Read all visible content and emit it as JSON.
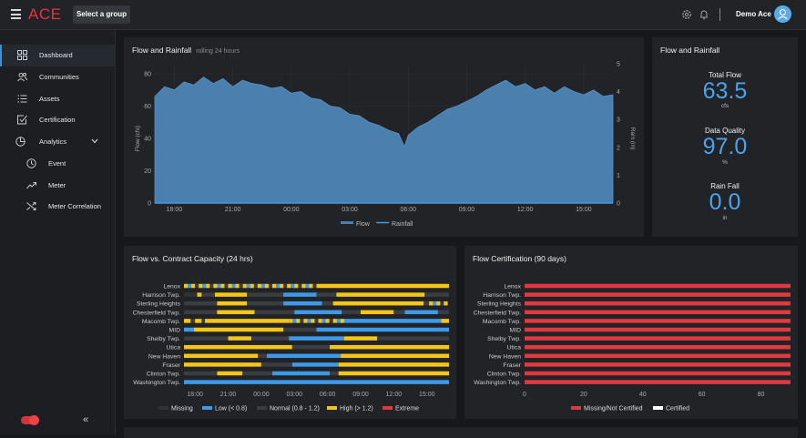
{
  "header": {
    "logo": "ACE",
    "group_button": "Select a group",
    "user_name": "Demo Ace",
    "icons": [
      "menu-icon",
      "gear-icon",
      "bell-icon",
      "user-icon"
    ]
  },
  "sidebar": {
    "items": [
      {
        "label": "Dashboard",
        "icon": "grid-icon",
        "active": true
      },
      {
        "label": "Communities",
        "icon": "users-icon"
      },
      {
        "label": "Assets",
        "icon": "list-icon"
      },
      {
        "label": "Certification",
        "icon": "checkbox-icon"
      },
      {
        "label": "Analytics",
        "icon": "pie-icon",
        "expanded": true
      },
      {
        "label": "Event",
        "icon": "clock-icon"
      },
      {
        "label": "Meter",
        "icon": "trend-icon"
      },
      {
        "label": "Meter Correlation",
        "icon": "shuffle-icon"
      }
    ],
    "collapse_label": "«"
  },
  "flow_panel": {
    "title": "Flow and Rainfall",
    "subtitle": "rolling 24 hours"
  },
  "kpi_panel": {
    "title": "Flow and Rainfall",
    "total_flow_label": "Total Flow",
    "total_flow_value": "63.5",
    "total_flow_unit": "cfs",
    "quality_label": "Data Quality",
    "quality_value": "97.0",
    "quality_unit": "%",
    "rain_label": "Rain Fall",
    "rain_value": "0.0",
    "rain_unit": "in"
  },
  "capacity_panel": {
    "title": "Flow vs. Contract Capacity (24 hrs)"
  },
  "cert_panel": {
    "title": "Flow Certification (90 days)"
  },
  "colors": {
    "accent": "#4aa3f0",
    "flow_fill": "#4a7fae",
    "missing": "#2f3236",
    "low": "#3d9ae8",
    "normal": "#3a3d41",
    "high": "#f5c518",
    "extreme": "#e03a40",
    "certified": "#ffffff"
  },
  "chart_data": [
    {
      "type": "area",
      "title": "Flow and Rainfall",
      "subtitle": "rolling 24 hours",
      "xlabel": "",
      "ylabel": "Flow (cfs)",
      "y2label": "Rain (in)",
      "ylim": [
        0,
        80
      ],
      "y2lim": [
        0,
        5
      ],
      "yticks": [
        0,
        20,
        40,
        60,
        80
      ],
      "y2ticks": [
        0,
        1,
        2,
        3,
        4,
        5
      ],
      "x_ticks": [
        "18:00",
        "21:00",
        "00:00",
        "03:00",
        "06:00",
        "09:00",
        "12:00",
        "15:00"
      ],
      "x_start_hour": 17,
      "x_end_hour": 40.5,
      "series": [
        {
          "name": "Flow",
          "hours": [
            17,
            17.5,
            18,
            18.5,
            19,
            19.5,
            20,
            20.5,
            21,
            21.5,
            22,
            22.5,
            23,
            23.5,
            24,
            24.5,
            25,
            25.5,
            26,
            26.5,
            27,
            27.5,
            28,
            28.5,
            29,
            29.5,
            29.8,
            30,
            30.5,
            31,
            31.5,
            32,
            32.5,
            33,
            33.5,
            34,
            34.5,
            35,
            35.5,
            36,
            36.5,
            37,
            37.5,
            38,
            38.5,
            39,
            39.5,
            40,
            40.5
          ],
          "values": [
            66,
            72,
            70,
            75,
            73,
            78,
            74,
            77,
            72,
            76,
            74,
            73,
            71,
            72,
            68,
            69,
            65,
            64,
            60,
            59,
            55,
            54,
            50,
            48,
            45,
            43,
            35,
            42,
            47,
            50,
            54,
            58,
            60,
            63,
            66,
            70,
            73,
            76,
            72,
            74,
            70,
            72,
            68,
            72,
            69,
            67,
            70,
            66,
            67
          ]
        },
        {
          "name": "Rainfall",
          "values": []
        }
      ]
    },
    {
      "type": "bar",
      "orientation": "horizontal",
      "title": "Flow vs. Contract Capacity (24 hrs)",
      "categories": [
        "Lenox",
        "Harrison Twp.",
        "Sterling Heights",
        "Chesterfield Twp.",
        "Macomb Twp.",
        "MID",
        "Shelby Twp.",
        "Utica",
        "New Haven",
        "Fraser",
        "Clinton Twp.",
        "Washington Twp."
      ],
      "x_ticks": [
        "18:00",
        "21:00",
        "00:00",
        "03:00",
        "06:00",
        "09:00",
        "12:00",
        "15:00"
      ],
      "legend": [
        "Missing",
        "Low (< 0.8)",
        "Normal (0.8 - 1.2)",
        "High (> 1.2)",
        "Extreme"
      ],
      "segments": [
        [
          [
            0,
            12,
            "mixed"
          ],
          [
            12,
            24,
            "high"
          ]
        ],
        [
          [
            0,
            1.2,
            "missing"
          ],
          [
            1.2,
            1.6,
            "high"
          ],
          [
            1.6,
            2.8,
            "normal"
          ],
          [
            2.8,
            5.7,
            "high"
          ],
          [
            5.7,
            9,
            "normal"
          ],
          [
            9,
            12,
            "low"
          ],
          [
            12,
            13.8,
            "normal"
          ],
          [
            13.8,
            21.8,
            "high"
          ],
          [
            21.8,
            24,
            "normal"
          ]
        ],
        [
          [
            0,
            3,
            "normal"
          ],
          [
            3,
            5.7,
            "high"
          ],
          [
            5.7,
            9,
            "normal"
          ],
          [
            9,
            12.5,
            "low"
          ],
          [
            12.5,
            13.5,
            "normal"
          ],
          [
            13.5,
            21.7,
            "high"
          ],
          [
            21.7,
            22.2,
            "normal"
          ],
          [
            22.2,
            24,
            "mixed"
          ]
        ],
        [
          [
            0,
            3,
            "normal"
          ],
          [
            3,
            6.4,
            "high"
          ],
          [
            6.4,
            10,
            "normal"
          ],
          [
            10,
            14.3,
            "low"
          ],
          [
            14.3,
            16,
            "normal"
          ],
          [
            16,
            19,
            "high"
          ],
          [
            19,
            20,
            "normal"
          ],
          [
            20,
            23,
            "low"
          ],
          [
            23,
            24,
            "normal"
          ]
        ],
        [
          [
            0,
            0.6,
            "high"
          ],
          [
            0.6,
            1,
            "normal"
          ],
          [
            1,
            1.6,
            "high"
          ],
          [
            1.6,
            1.9,
            "normal"
          ],
          [
            1.9,
            9.5,
            "high"
          ],
          [
            9.5,
            14.5,
            "mixed"
          ],
          [
            14.5,
            23.3,
            "low"
          ],
          [
            23.3,
            24,
            "high"
          ]
        ],
        [
          [
            0,
            0.9,
            "low"
          ],
          [
            0.9,
            9,
            "high"
          ],
          [
            9,
            12,
            "normal"
          ],
          [
            12,
            24,
            "low"
          ]
        ],
        [
          [
            0,
            4,
            "normal"
          ],
          [
            4,
            6.1,
            "high"
          ],
          [
            6.1,
            9.5,
            "normal"
          ],
          [
            9.5,
            14.5,
            "low"
          ],
          [
            14.5,
            17.5,
            "high"
          ],
          [
            17.5,
            24,
            "normal"
          ]
        ],
        [
          [
            0,
            9.8,
            "high"
          ],
          [
            9.8,
            13.2,
            "normal"
          ],
          [
            13.2,
            24,
            "high"
          ]
        ],
        [
          [
            0,
            6.7,
            "high"
          ],
          [
            6.7,
            7.5,
            "normal"
          ],
          [
            7.5,
            14.2,
            "low"
          ],
          [
            14.2,
            24,
            "high"
          ]
        ],
        [
          [
            0,
            7,
            "high"
          ],
          [
            7,
            9.8,
            "normal"
          ],
          [
            9.8,
            14,
            "low"
          ],
          [
            14,
            24,
            "high"
          ]
        ],
        [
          [
            0,
            3,
            "normal"
          ],
          [
            3,
            5.3,
            "high"
          ],
          [
            5.3,
            8,
            "normal"
          ],
          [
            8,
            13.2,
            "low"
          ],
          [
            13.2,
            14,
            "normal"
          ],
          [
            14,
            24,
            "high"
          ]
        ],
        [
          [
            0,
            24,
            "low"
          ]
        ]
      ]
    },
    {
      "type": "bar",
      "orientation": "horizontal",
      "title": "Flow Certification (90 days)",
      "categories": [
        "Lenox",
        "Harrison Twp.",
        "Sterling Heights",
        "Chesterfield Twp.",
        "Macomb Twp.",
        "MID",
        "Shelby Twp.",
        "Utica",
        "New Haven",
        "Fraser",
        "Clinton Twp.",
        "Washington Twp."
      ],
      "xlim": [
        0,
        90
      ],
      "x_ticks": [
        0,
        20,
        40,
        60,
        80
      ],
      "series": [
        {
          "name": "Missing/Not Certified",
          "values": [
            90,
            90,
            90,
            90,
            90,
            90,
            90,
            90,
            90,
            90,
            90,
            90
          ]
        },
        {
          "name": "Certified",
          "values": [
            0,
            0,
            0,
            0,
            0,
            0,
            0,
            0,
            0,
            0,
            0,
            0
          ]
        }
      ]
    }
  ]
}
